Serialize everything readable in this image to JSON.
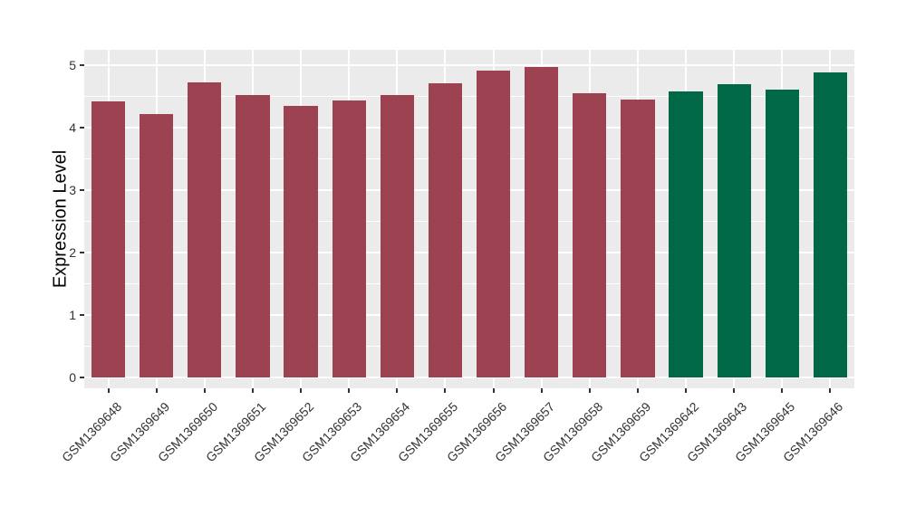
{
  "chart_data": {
    "type": "bar",
    "title": "",
    "xlabel": "",
    "ylabel": "Expression Level",
    "ylim": [
      0,
      5.25
    ],
    "yticks": [
      0,
      1,
      2,
      3,
      4,
      5
    ],
    "yminorticks": [
      0.5,
      1.5,
      2.5,
      3.5,
      4.5
    ],
    "legend": "none",
    "grid": "white major+minor horizontal lines, white vertical lines at category centers, on gray panel",
    "categories": [
      "GSM1369648",
      "GSM1369649",
      "GSM1369650",
      "GSM1369651",
      "GSM1369652",
      "GSM1369653",
      "GSM1369654",
      "GSM1369655",
      "GSM1369656",
      "GSM1369657",
      "GSM1369658",
      "GSM1369659",
      "GSM1369642",
      "GSM1369643",
      "GSM1369645",
      "GSM1369646"
    ],
    "values": [
      4.43,
      4.22,
      4.73,
      4.53,
      4.35,
      4.44,
      4.52,
      4.72,
      4.92,
      4.97,
      4.55,
      4.45,
      4.59,
      4.7,
      4.62,
      4.89
    ],
    "bar_color_groups": [
      "maroon",
      "maroon",
      "maroon",
      "maroon",
      "maroon",
      "maroon",
      "maroon",
      "maroon",
      "maroon",
      "maroon",
      "maroon",
      "maroon",
      "green",
      "green",
      "green",
      "green"
    ],
    "colors": {
      "maroon": "#9C4250",
      "green": "#006747",
      "panel_background": "#EBEBEB",
      "gridline": "#FFFFFF",
      "axis_text": "#333333",
      "axis_title": "#000000",
      "tick_mark": "#333333",
      "figure_background": "#FFFFFF"
    }
  }
}
